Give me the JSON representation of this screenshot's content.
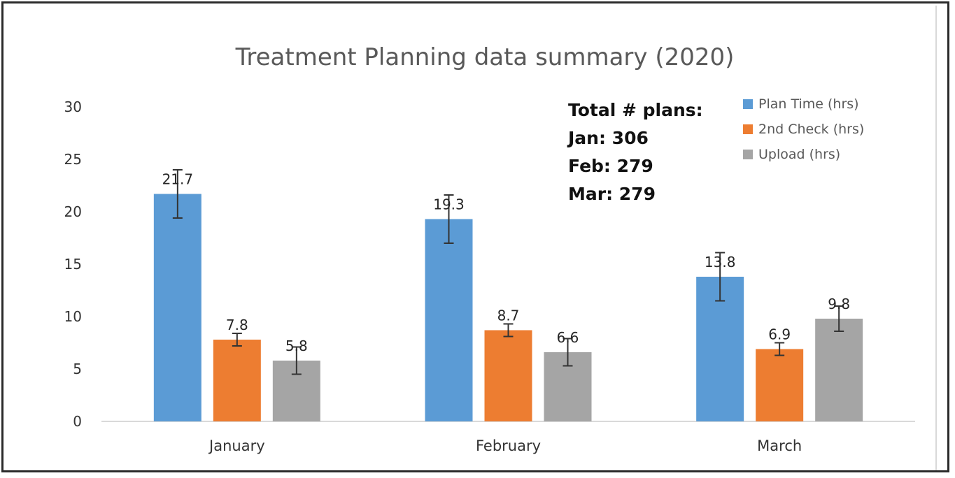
{
  "chart_data": {
    "type": "bar",
    "title": "Treatment Planning data summary (2020)",
    "xlabel": "",
    "ylabel": "",
    "categories": [
      "January",
      "February",
      "March"
    ],
    "ylim": [
      0,
      30
    ],
    "yticks": [
      0,
      5,
      10,
      15,
      20,
      25,
      30
    ],
    "grid": false,
    "legend_position": "top-right",
    "series": [
      {
        "name": "Plan Time (hrs)",
        "color": "#5b9bd5",
        "values": [
          21.7,
          19.3,
          13.8
        ],
        "labels": [
          "21.7",
          "19.3",
          "13.8"
        ],
        "errors": [
          2.3,
          2.3,
          2.3
        ]
      },
      {
        "name": "2nd Check (hrs)",
        "color": "#ed7d31",
        "values": [
          7.8,
          8.7,
          6.9
        ],
        "labels": [
          "7.8",
          "8.7",
          "6.9"
        ],
        "errors": [
          0.6,
          0.6,
          0.6
        ]
      },
      {
        "name": "Upload (hrs)",
        "color": "#a5a5a5",
        "values": [
          5.8,
          6.6,
          9.8
        ],
        "labels": [
          "5.8",
          "6.6",
          "9.8"
        ],
        "errors": [
          1.3,
          1.3,
          1.2
        ]
      }
    ],
    "annotation": {
      "heading": "Total # plans:",
      "lines": [
        "Jan: 306",
        "Feb: 279",
        "Mar: 279"
      ]
    }
  }
}
